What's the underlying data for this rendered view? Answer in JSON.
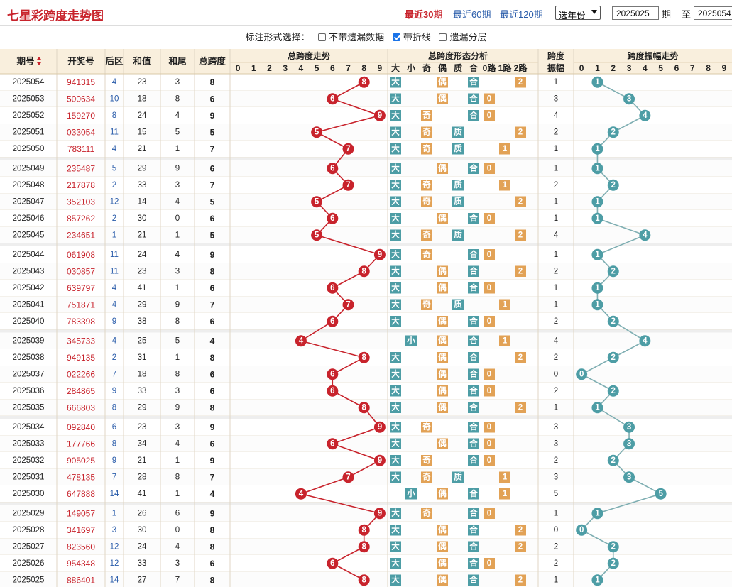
{
  "title": "七星彩跨度走势图",
  "ranges": [
    "最近30期",
    "最近60期",
    "最近120期"
  ],
  "year_select": "选年份",
  "from_issue": "2025025",
  "from_label": "期",
  "to_label": "至",
  "to_issue": "2025054",
  "options": {
    "label": "标注形式选择：",
    "items": [
      {
        "label": "不带遗漏数据",
        "checked": false
      },
      {
        "label": "带折线",
        "checked": true
      },
      {
        "label": "遗漏分层",
        "checked": false
      }
    ]
  },
  "headers": {
    "issue": "期号",
    "draw": "开奖号",
    "back": "后区",
    "sum": "和值",
    "tail": "和尾",
    "span": "总跨度",
    "trend": "总跨度走势",
    "form": "总跨度形态分析",
    "amp": "跨度振幅",
    "amp_trend": "跨度振幅走势",
    "digits": [
      "0",
      "1",
      "2",
      "3",
      "4",
      "5",
      "6",
      "7",
      "8",
      "9"
    ],
    "form_cols": [
      "大",
      "小",
      "奇",
      "偶",
      "质",
      "合",
      "0路",
      "1路",
      "2路"
    ]
  },
  "rows": [
    [
      "2025054",
      "941315",
      4,
      23,
      3,
      8,
      1
    ],
    [
      "2025053",
      "500634",
      10,
      18,
      8,
      6,
      3
    ],
    [
      "2025052",
      "159270",
      8,
      24,
      4,
      9,
      4
    ],
    [
      "2025051",
      "033054",
      11,
      15,
      5,
      5,
      2
    ],
    [
      "2025050",
      "783111",
      4,
      21,
      1,
      7,
      1
    ],
    [
      "2025049",
      "235487",
      5,
      29,
      9,
      6,
      1
    ],
    [
      "2025048",
      "217878",
      2,
      33,
      3,
      7,
      2
    ],
    [
      "2025047",
      "352103",
      12,
      14,
      4,
      5,
      1
    ],
    [
      "2025046",
      "857262",
      2,
      30,
      0,
      6,
      1
    ],
    [
      "2025045",
      "234651",
      1,
      21,
      1,
      5,
      4
    ],
    [
      "2025044",
      "061908",
      11,
      24,
      4,
      9,
      1
    ],
    [
      "2025043",
      "030857",
      11,
      23,
      3,
      8,
      2
    ],
    [
      "2025042",
      "639797",
      4,
      41,
      1,
      6,
      1
    ],
    [
      "2025041",
      "751871",
      4,
      29,
      9,
      7,
      1
    ],
    [
      "2025040",
      "783398",
      9,
      38,
      8,
      6,
      2
    ],
    [
      "2025039",
      "345733",
      4,
      25,
      5,
      4,
      4
    ],
    [
      "2025038",
      "949135",
      2,
      31,
      1,
      8,
      2
    ],
    [
      "2025037",
      "022266",
      7,
      18,
      8,
      6,
      0
    ],
    [
      "2025036",
      "284865",
      9,
      33,
      3,
      6,
      2
    ],
    [
      "2025035",
      "666803",
      8,
      29,
      9,
      8,
      1
    ],
    [
      "2025034",
      "092840",
      6,
      23,
      3,
      9,
      3
    ],
    [
      "2025033",
      "177766",
      8,
      34,
      4,
      6,
      3
    ],
    [
      "2025032",
      "905025",
      9,
      21,
      1,
      9,
      2
    ],
    [
      "2025031",
      "478135",
      7,
      28,
      8,
      7,
      3
    ],
    [
      "2025030",
      "647888",
      14,
      41,
      1,
      4,
      5
    ],
    [
      "2025029",
      "149057",
      1,
      26,
      6,
      9,
      1
    ],
    [
      "2025028",
      "341697",
      3,
      30,
      0,
      8,
      0
    ],
    [
      "2025027",
      "823560",
      12,
      24,
      4,
      8,
      2
    ],
    [
      "2025026",
      "954348",
      12,
      33,
      3,
      6,
      2
    ],
    [
      "2025025",
      "886401",
      14,
      27,
      7,
      8,
      1
    ]
  ],
  "colors": {
    "red": "#c8232c",
    "teal": "#4d9da5",
    "orange": "#e2a256",
    "line_red": "#c8232c",
    "line_teal": "#7eaeb2"
  }
}
